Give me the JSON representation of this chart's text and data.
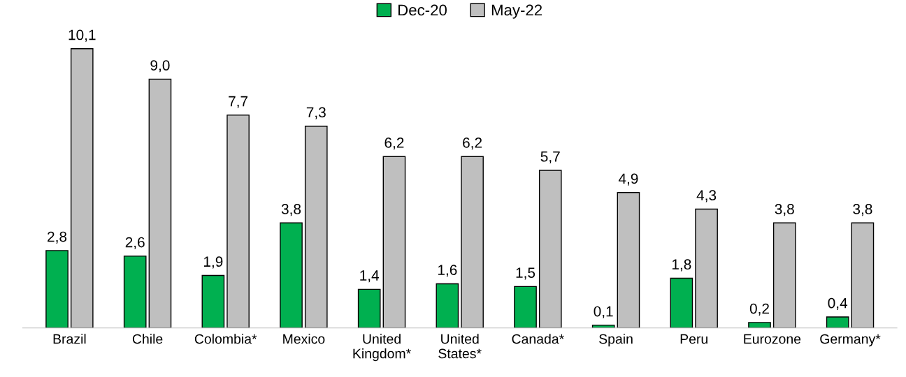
{
  "chart_data": {
    "type": "bar",
    "categories": [
      "Brazil",
      "Chile",
      "Colombia*",
      "Mexico",
      "United\nKingdom*",
      "United\nStates*",
      "Canada*",
      "Spain",
      "Peru",
      "Eurozone",
      "Germany*"
    ],
    "series": [
      {
        "name": "Dec-20",
        "color": "#00b050",
        "values": [
          2.8,
          2.6,
          1.9,
          3.8,
          1.4,
          1.6,
          1.5,
          0.1,
          1.8,
          0.2,
          0.4
        ],
        "value_labels": [
          "2,8",
          "2,6",
          "1,9",
          "3,8",
          "1,4",
          "1,6",
          "1,5",
          "0,1",
          "1,8",
          "0,2",
          "0,4"
        ]
      },
      {
        "name": "May-22",
        "color": "#bfbfbf",
        "values": [
          10.1,
          9.0,
          7.7,
          7.3,
          6.2,
          6.2,
          5.7,
          4.9,
          4.3,
          3.8,
          3.8
        ],
        "value_labels": [
          "10,1",
          "9,0",
          "7,7",
          "7,3",
          "6,2",
          "6,2",
          "5,7",
          "4,9",
          "4,3",
          "3,8",
          "3,8"
        ]
      }
    ],
    "legend": "top",
    "grid": false
  }
}
